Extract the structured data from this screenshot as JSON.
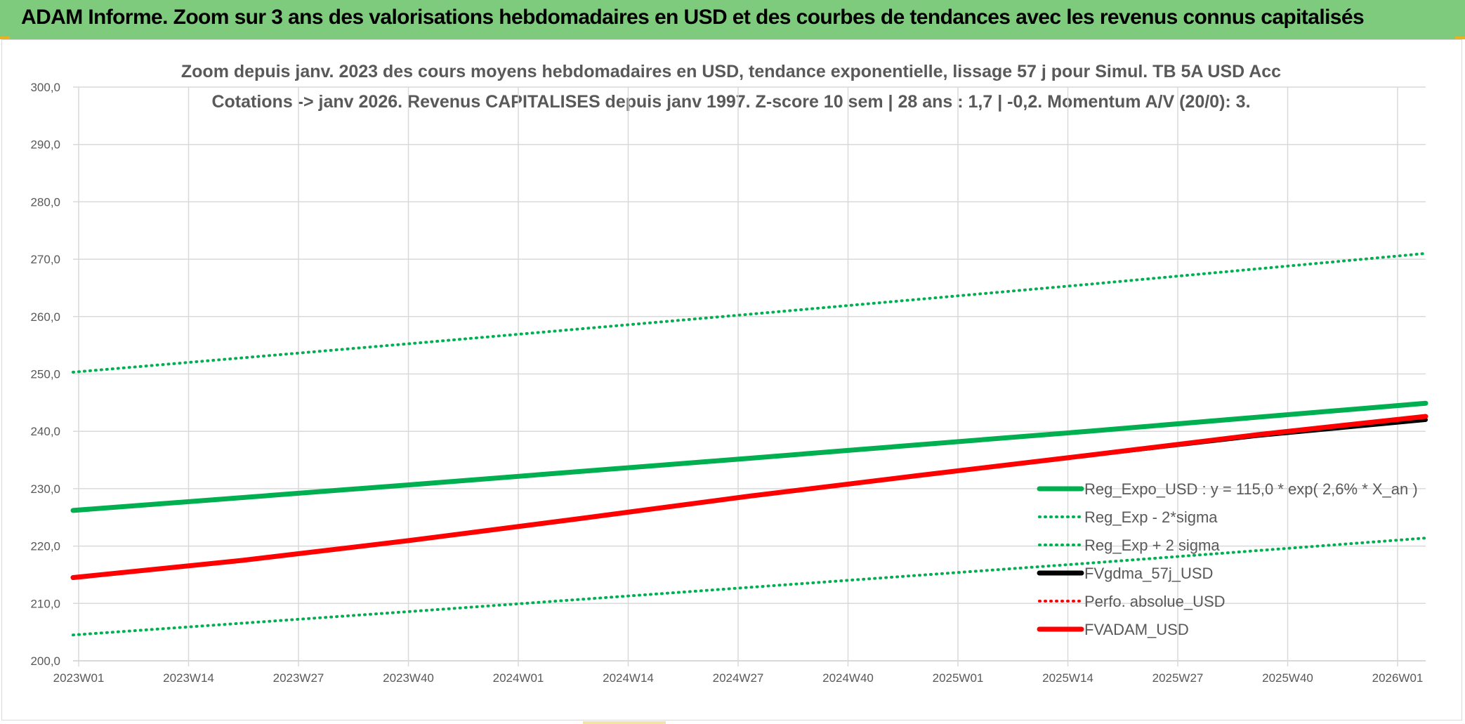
{
  "header": {
    "banner_title": "ADAM Informe. Zoom sur 3 ans des valorisations hebdomadaires en USD et des courbes de tendances avec les revenus connus capitalisés"
  },
  "colors": {
    "banner": "#7fcb7d",
    "trend": "#00b050",
    "fvadam": "#ff0000",
    "fvgdma": "#000000",
    "grid": "#d9d9d9",
    "text": "#595959"
  },
  "chart_data": {
    "type": "line",
    "title_line1": "Zoom depuis janv. 2023 des cours moyens hebdomadaires en USD, tendance exponentielle, lissage 57 j pour Simul. TB 5A USD Acc",
    "title_line2": "Cotations -> janv 2026. Revenus CAPITALISES depuis janv 1997. Z-score 10 sem | 28 ans : 1,7 | -0,2. Momentum A/V (20/0): 3.",
    "ylim": [
      200,
      300
    ],
    "y_ticks": [
      "200,0",
      "210,0",
      "220,0",
      "230,0",
      "240,0",
      "250,0",
      "260,0",
      "270,0",
      "280,0",
      "290,0",
      "300,0"
    ],
    "x_ticks": [
      "2023W01",
      "2023W14",
      "2023W27",
      "2023W40",
      "2024W01",
      "2024W14",
      "2024W27",
      "2024W40",
      "2025W01",
      "2025W14",
      "2025W27",
      "2025W40",
      "2026W01"
    ],
    "x_range_weeks": [
      0,
      160
    ],
    "grid": "on",
    "legend_position": "bottom-right",
    "series": [
      {
        "name": "Reg_Expo_USD : y = 115,0 * exp( 2,6% *  X_an )",
        "style": "thick",
        "color": "#00b050",
        "x": [
          0,
          40,
          80,
          120,
          160
        ],
        "y": [
          226.2,
          230.7,
          235.3,
          240.0,
          244.9
        ]
      },
      {
        "name": "Reg_Exp - 2*sigma",
        "style": "dotted",
        "color": "#00b050",
        "x": [
          0,
          40,
          80,
          120,
          160
        ],
        "y": [
          204.5,
          208.6,
          212.8,
          217.0,
          221.4
        ]
      },
      {
        "name": "Reg_Exp + 2 sigma",
        "style": "dotted",
        "color": "#00b050",
        "x": [
          0,
          40,
          80,
          120,
          160
        ],
        "y": [
          250.3,
          255.3,
          260.4,
          265.6,
          271.0
        ]
      },
      {
        "name": "FVgdma_57j_USD",
        "style": "thick",
        "color": "#000000",
        "x": [
          0,
          20,
          40,
          60,
          80,
          100,
          120,
          140,
          150,
          160
        ],
        "y": [
          214.5,
          217.5,
          221.0,
          224.8,
          228.7,
          232.3,
          235.8,
          239.2,
          240.6,
          242.0
        ]
      },
      {
        "name": "Perfo. absolue_USD",
        "style": "dotted",
        "color": "#ff0000",
        "x": [],
        "y": []
      },
      {
        "name": "FVADAM_USD",
        "style": "thick",
        "color": "#ff0000",
        "x": [
          0,
          20,
          40,
          60,
          80,
          100,
          120,
          140,
          150,
          160
        ],
        "y": [
          214.5,
          217.5,
          221.0,
          224.8,
          228.7,
          232.3,
          235.8,
          239.4,
          241.0,
          242.6
        ]
      }
    ]
  }
}
